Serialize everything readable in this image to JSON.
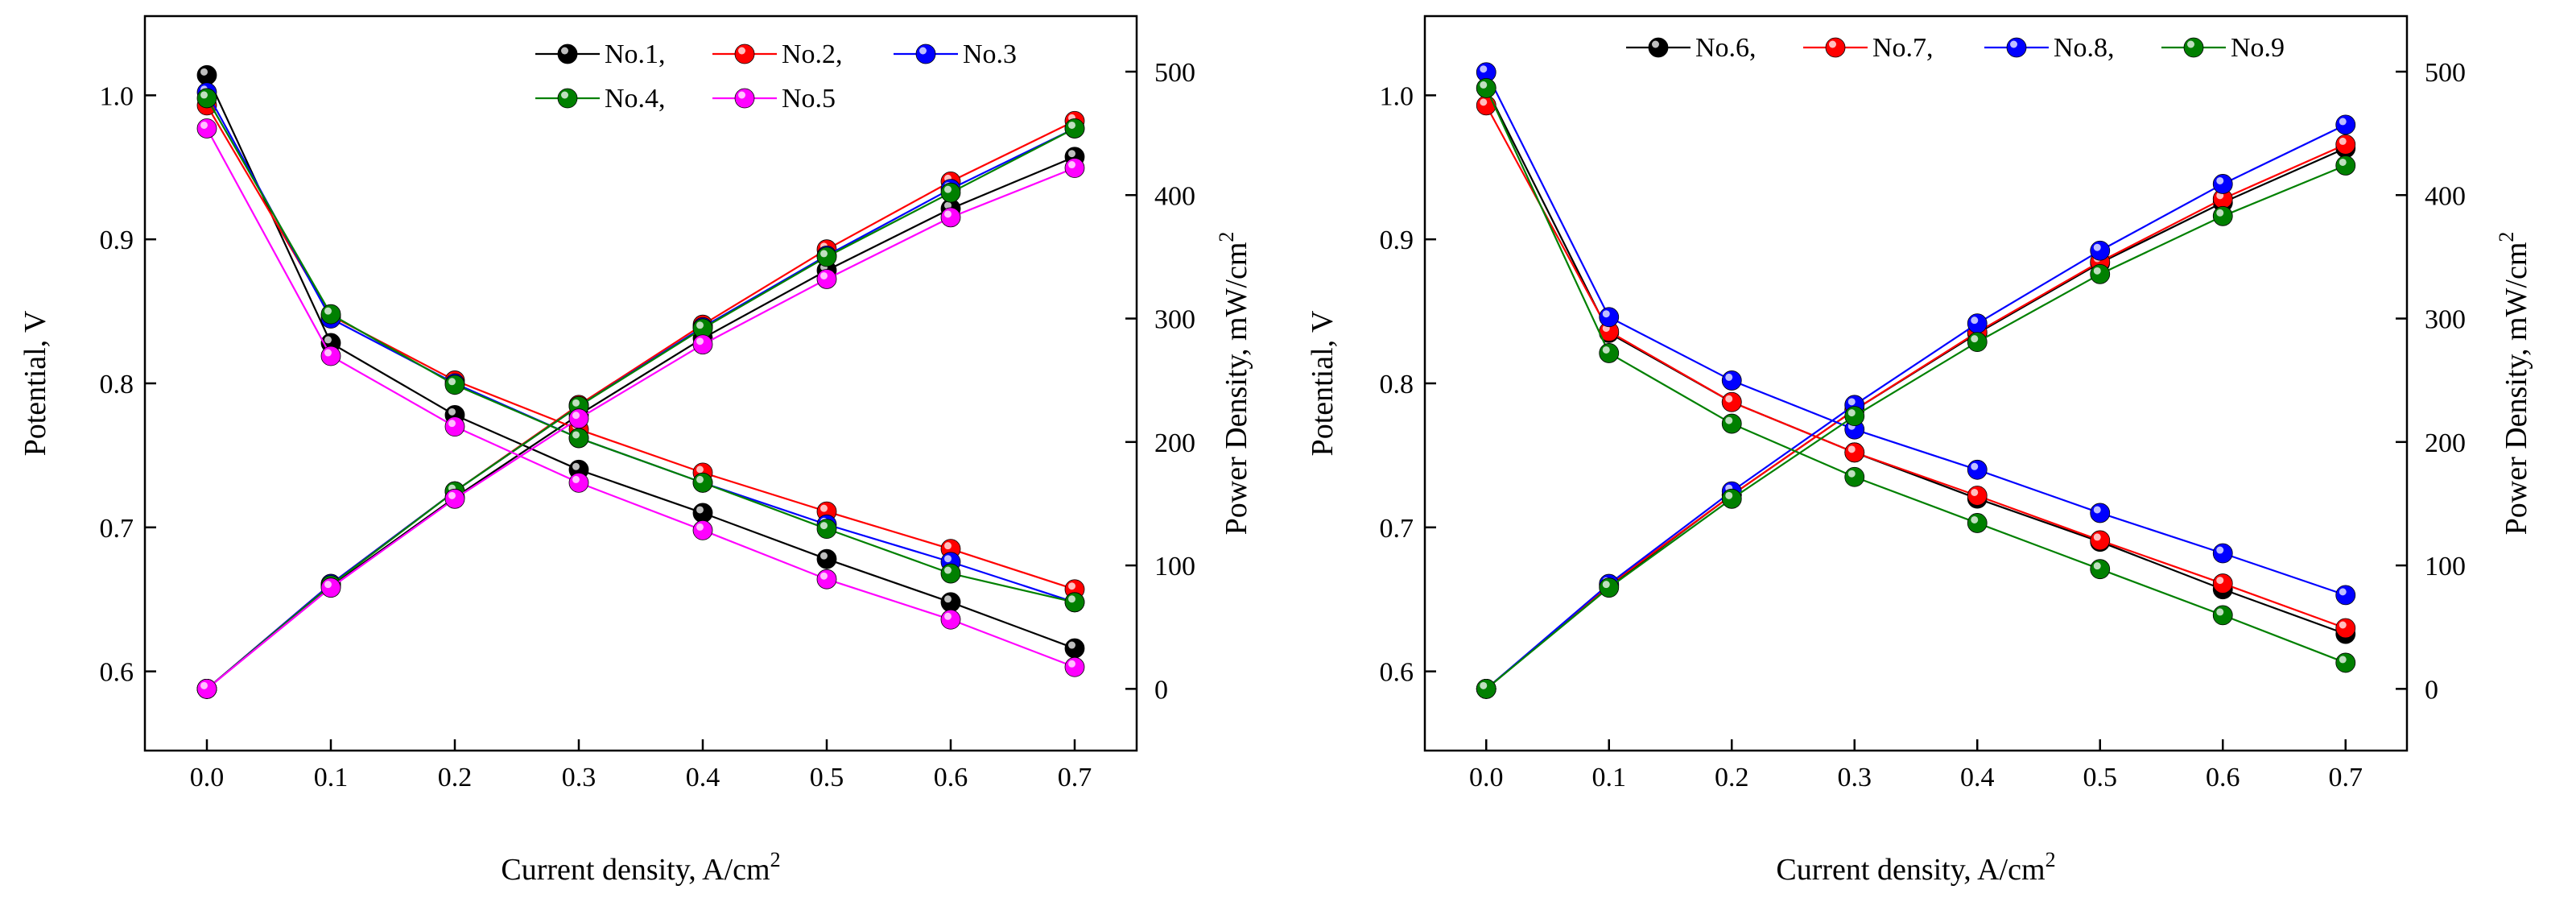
{
  "chart_data": [
    {
      "type": "line",
      "name": "left-panel",
      "xlabel": "Current density, A/cm",
      "xlabel_sup": "2",
      "ylabel": "Potential, V",
      "y2label": "Power Density, mW/cm",
      "y2label_sup": "2",
      "xlim": [
        -0.05,
        0.75
      ],
      "ylim": [
        0.545,
        1.055
      ],
      "y2lim": [
        -50,
        545
      ],
      "xticks": [
        "0.0",
        "0.1",
        "0.2",
        "0.3",
        "0.4",
        "0.5",
        "0.6",
        "0.7"
      ],
      "yticks": [
        "0.6",
        "0.7",
        "0.8",
        "0.9",
        "1.0"
      ],
      "y2ticks": [
        "0",
        "100",
        "200",
        "300",
        "400",
        "500"
      ],
      "legend": {
        "placement": "top-right",
        "rows": [
          [
            "No.1,",
            "No.2,",
            "No.3"
          ],
          [
            "No.4,",
            "No.5"
          ]
        ]
      },
      "x": [
        0.0,
        0.1,
        0.2,
        0.3,
        0.4,
        0.5,
        0.6,
        0.7
      ],
      "series": [
        {
          "name": "No.1",
          "color": "#000000",
          "potential": [
            1.014,
            0.828,
            0.778,
            0.74,
            0.71,
            0.678,
            0.648,
            0.616
          ],
          "power": [
            0,
            83,
            155,
            222,
            284,
            339,
            389,
            431
          ]
        },
        {
          "name": "No.2",
          "color": "#ff0000",
          "potential": [
            0.993,
            0.847,
            0.802,
            0.768,
            0.738,
            0.711,
            0.685,
            0.657
          ],
          "power": [
            0,
            85,
            160,
            230,
            295,
            356,
            411,
            460
          ]
        },
        {
          "name": "No.3",
          "color": "#0000ff",
          "potential": [
            1.002,
            0.845,
            0.8,
            0.762,
            0.731,
            0.702,
            0.676,
            0.648
          ],
          "power": [
            0,
            85,
            160,
            229,
            293,
            351,
            405,
            454
          ]
        },
        {
          "name": "No.4",
          "color": "#008000",
          "potential": [
            0.998,
            0.848,
            0.799,
            0.762,
            0.731,
            0.699,
            0.668,
            0.648
          ],
          "power": [
            0,
            84,
            160,
            229,
            292,
            350,
            402,
            454
          ]
        },
        {
          "name": "No.5",
          "color": "#ff00ff",
          "potential": [
            0.977,
            0.819,
            0.77,
            0.731,
            0.698,
            0.664,
            0.636,
            0.603
          ],
          "power": [
            0,
            82,
            154,
            219,
            279,
            332,
            382,
            422
          ]
        }
      ]
    },
    {
      "type": "line",
      "name": "right-panel",
      "xlabel": "Current density, A/cm",
      "xlabel_sup": "2",
      "ylabel": "Potential, V",
      "y2label": "Power Density, mW/cm",
      "y2label_sup": "2",
      "xlim": [
        -0.05,
        0.75
      ],
      "ylim": [
        0.545,
        1.055
      ],
      "y2lim": [
        -50,
        545
      ],
      "xticks": [
        "0.0",
        "0.1",
        "0.2",
        "0.3",
        "0.4",
        "0.5",
        "0.6",
        "0.7"
      ],
      "yticks": [
        "0.6",
        "0.7",
        "0.8",
        "0.9",
        "1.0"
      ],
      "y2ticks": [
        "0",
        "100",
        "200",
        "300",
        "400",
        "500"
      ],
      "legend": {
        "placement": "top",
        "rows": [
          [
            "No.6,",
            "No.7,",
            "No.8,",
            "No.9"
          ]
        ]
      },
      "x": [
        0.0,
        0.1,
        0.2,
        0.3,
        0.4,
        0.5,
        0.6,
        0.7
      ],
      "series": [
        {
          "name": "No.6",
          "color": "#000000",
          "potential": [
            1.005,
            0.835,
            0.787,
            0.752,
            0.72,
            0.69,
            0.657,
            0.626
          ],
          "power": [
            0,
            83,
            157,
            226,
            288,
            345,
            394,
            438
          ]
        },
        {
          "name": "No.7",
          "color": "#ff0000",
          "potential": [
            0.993,
            0.836,
            0.787,
            0.752,
            0.722,
            0.691,
            0.661,
            0.63
          ],
          "power": [
            0,
            84,
            157,
            226,
            289,
            346,
            397,
            441
          ]
        },
        {
          "name": "No.8",
          "color": "#0000ff",
          "potential": [
            1.016,
            0.846,
            0.802,
            0.768,
            0.74,
            0.71,
            0.682,
            0.653
          ],
          "power": [
            0,
            85,
            160,
            230,
            296,
            355,
            409,
            457
          ]
        },
        {
          "name": "No.9",
          "color": "#008000",
          "potential": [
            1.005,
            0.821,
            0.772,
            0.735,
            0.703,
            0.671,
            0.639,
            0.606
          ],
          "power": [
            0,
            82,
            154,
            221,
            281,
            336,
            383,
            424
          ]
        }
      ]
    }
  ]
}
